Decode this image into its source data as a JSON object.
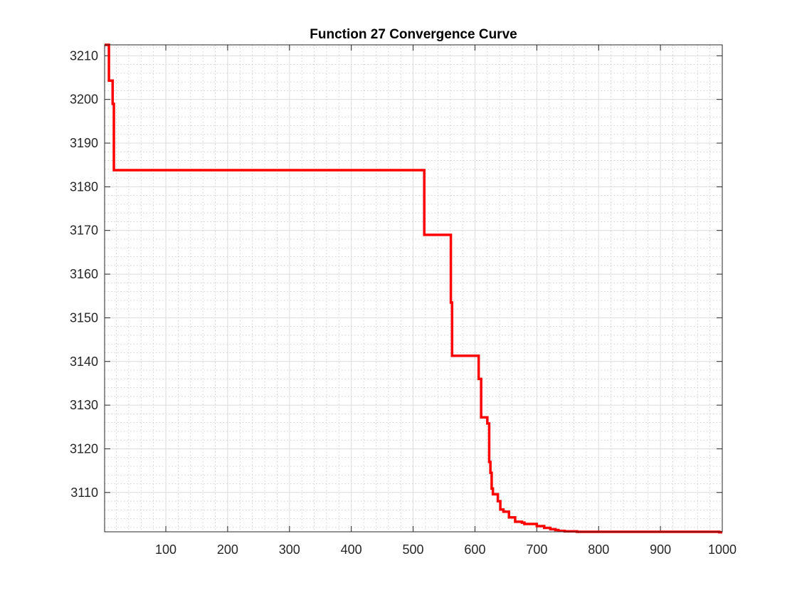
{
  "chart_data": {
    "type": "line",
    "title": "Function 27 Convergence Curve",
    "xlabel": "",
    "ylabel": "",
    "xlim": [
      1,
      1000
    ],
    "ylim": [
      3101,
      3212.5
    ],
    "xticks": [
      100,
      200,
      300,
      400,
      500,
      600,
      700,
      800,
      900,
      1000
    ],
    "xtick_labels": [
      "100",
      "200",
      "300",
      "400",
      "500",
      "600",
      "700",
      "800",
      "900",
      "1000"
    ],
    "yticks": [
      3110,
      3120,
      3130,
      3140,
      3150,
      3160,
      3170,
      3180,
      3190,
      3200,
      3210
    ],
    "ytick_labels": [
      "3110",
      "3120",
      "3130",
      "3140",
      "3150",
      "3160",
      "3170",
      "3180",
      "3190",
      "3200",
      "3210"
    ],
    "grid": true,
    "minor_grid": true,
    "line_color": "#ff0000",
    "series": [
      {
        "step": true,
        "x": [
          1,
          8,
          8,
          14,
          14,
          16,
          16,
          518,
          518,
          561,
          561,
          563,
          563,
          606,
          606,
          610,
          610,
          620,
          620,
          623,
          623,
          625,
          625,
          627,
          627,
          629,
          629,
          637,
          637,
          641,
          641,
          646,
          646,
          655,
          655,
          665,
          665,
          671,
          671,
          676,
          676,
          680,
          680,
          700,
          700,
          712,
          712,
          722,
          722,
          730,
          730,
          735,
          735,
          745,
          745,
          765,
          765,
          995,
          995,
          1000
        ],
        "y": [
          3212.5,
          3212.5,
          3204.3,
          3204.3,
          3199.0,
          3199.0,
          3183.8,
          3183.8,
          3169.0,
          3169.0,
          3153.5,
          3153.5,
          3141.3,
          3141.3,
          3136.0,
          3136.0,
          3127.2,
          3127.2,
          3125.8,
          3125.8,
          3117.0,
          3117.0,
          3114.5,
          3114.5,
          3110.9,
          3110.9,
          3109.6,
          3109.6,
          3108.0,
          3108.0,
          3106.1,
          3106.1,
          3105.6,
          3105.6,
          3104.3,
          3104.3,
          3103.3,
          3103.3,
          3103.3,
          3103.3,
          3103.1,
          3103.1,
          3102.8,
          3102.8,
          3102.3,
          3102.3,
          3101.9,
          3101.9,
          3101.6,
          3101.6,
          3101.4,
          3101.4,
          3101.2,
          3101.2,
          3101.1,
          3101.1,
          3101.0,
          3101.0,
          3100.9,
          3100.9
        ]
      }
    ]
  }
}
